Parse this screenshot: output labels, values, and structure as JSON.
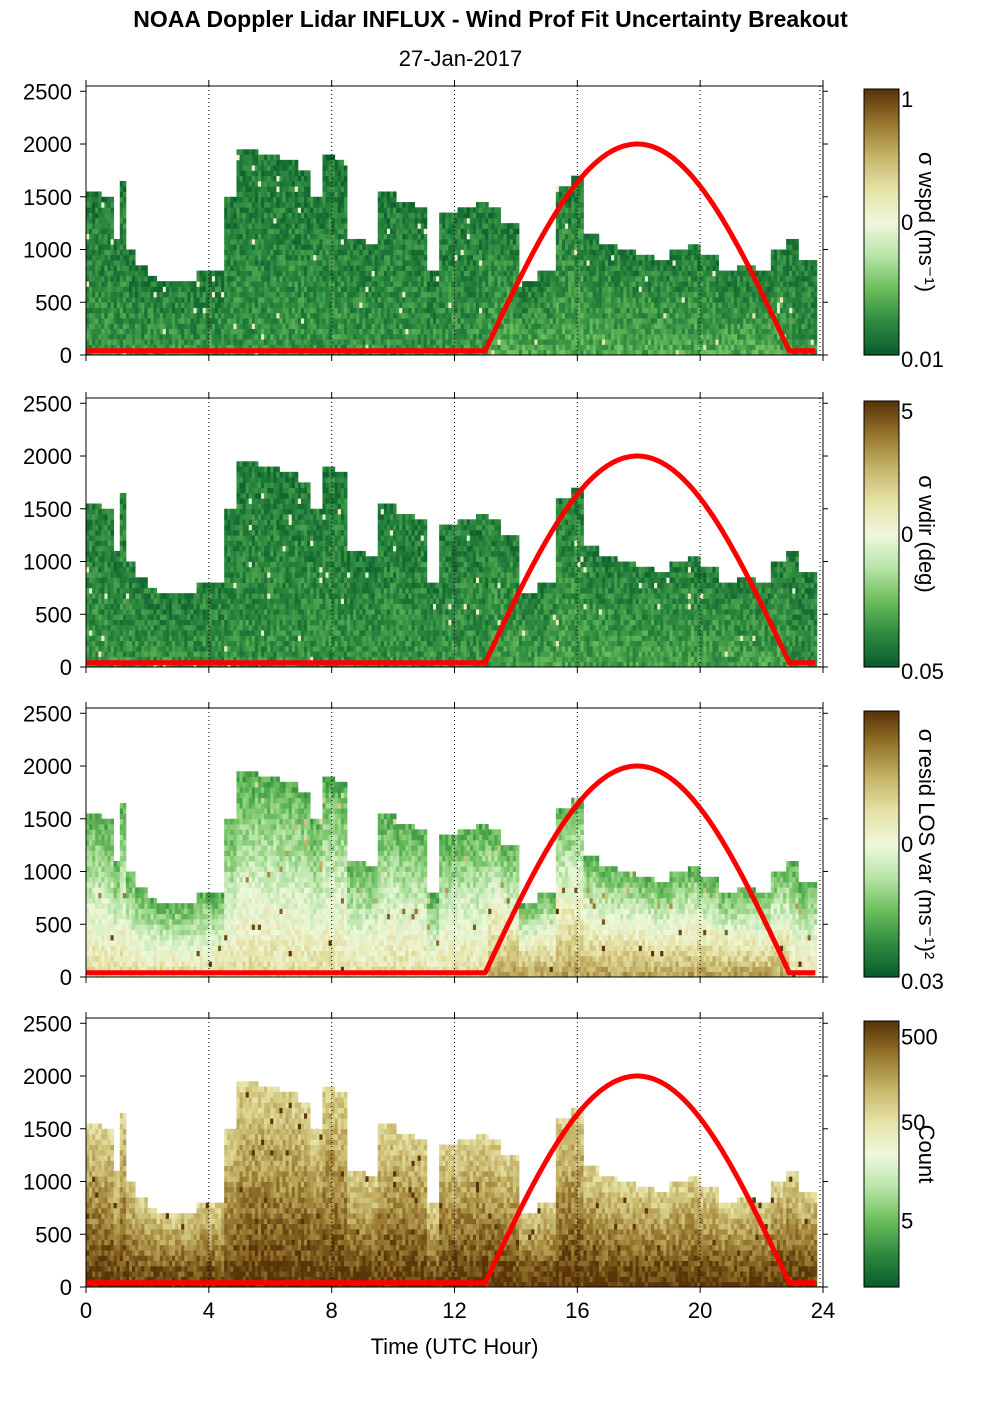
{
  "title": "NOAA Doppler Lidar INFLUX - Wind Prof Fit Uncertainty Breakout",
  "date": "27-Jan-2017",
  "x_axis": {
    "label": "Time (UTC Hour)",
    "ticks": [
      0,
      4,
      8,
      12,
      16,
      20,
      24
    ],
    "range": [
      0,
      24
    ]
  },
  "y_axis": {
    "ticks": [
      0,
      500,
      1000,
      1500,
      2000,
      2500
    ],
    "range": [
      0,
      2550
    ]
  },
  "sun_curve_color": "#ff0000",
  "colormap": [
    "#0a5c2c",
    "#2e8b40",
    "#6cbe5c",
    "#b8e4a8",
    "#eef8dc",
    "#e6e2a6",
    "#c6b56a",
    "#98772e",
    "#5a3508"
  ],
  "panels": [
    {
      "cbar_label": "σ wspd (ms⁻¹)",
      "cbar_ticks": [
        "1",
        "0",
        "0.01"
      ],
      "cbar_tick_pos": [
        1,
        0.5,
        0
      ]
    },
    {
      "cbar_label": "σ wdir (deg)",
      "cbar_ticks": [
        "5",
        "0",
        "0.05"
      ],
      "cbar_tick_pos": [
        1,
        0.5,
        0
      ]
    },
    {
      "cbar_label": "σ resid LOS var (ms⁻¹)²",
      "cbar_ticks": [
        "0",
        "0.03"
      ],
      "cbar_tick_pos": [
        0.5,
        0
      ]
    },
    {
      "cbar_label": "Count",
      "cbar_ticks": [
        "500",
        "50",
        "5"
      ],
      "cbar_tick_pos": [
        0.98,
        0.62,
        0.25
      ]
    }
  ],
  "chart_data": {
    "type": "heatmap",
    "x_unit": "UTC hour",
    "y_unit": "m",
    "profile_top_height": [
      [
        0.0,
        1530
      ],
      [
        0.5,
        1480
      ],
      [
        0.8,
        1100
      ],
      [
        1.0,
        1650
      ],
      [
        1.3,
        1000
      ],
      [
        1.6,
        850
      ],
      [
        2.0,
        750
      ],
      [
        2.3,
        700
      ],
      [
        2.8,
        700
      ],
      [
        3.2,
        700
      ],
      [
        3.6,
        800
      ],
      [
        4.0,
        780
      ],
      [
        4.5,
        1500
      ],
      [
        4.8,
        1920
      ],
      [
        5.5,
        1900
      ],
      [
        6.2,
        1850
      ],
      [
        6.8,
        1750
      ],
      [
        7.2,
        1500
      ],
      [
        7.6,
        1900
      ],
      [
        8.0,
        1850
      ],
      [
        8.4,
        1100
      ],
      [
        9.0,
        1050
      ],
      [
        9.4,
        1550
      ],
      [
        10.0,
        1450
      ],
      [
        10.6,
        1400
      ],
      [
        11.0,
        760
      ],
      [
        11.4,
        1350
      ],
      [
        12.0,
        1400
      ],
      [
        12.6,
        1450
      ],
      [
        13.0,
        1400
      ],
      [
        13.4,
        1250
      ],
      [
        14.0,
        700
      ],
      [
        14.6,
        800
      ],
      [
        15.2,
        1600
      ],
      [
        15.7,
        1700
      ],
      [
        16.1,
        1150
      ],
      [
        16.6,
        1050
      ],
      [
        17.2,
        1000
      ],
      [
        17.8,
        950
      ],
      [
        18.4,
        900
      ],
      [
        19.0,
        1000
      ],
      [
        19.6,
        1050
      ],
      [
        20.0,
        950
      ],
      [
        20.6,
        800
      ],
      [
        21.2,
        850
      ],
      [
        21.8,
        800
      ],
      [
        22.3,
        1000
      ],
      [
        22.8,
        1100
      ],
      [
        23.2,
        900
      ],
      [
        23.8,
        860
      ]
    ],
    "solar_elevation_curve": {
      "sunrise_hour": 13.0,
      "sunset_hour": 22.9,
      "peak_hour": 17.95,
      "peak_height": 2000,
      "night_level": 40
    },
    "series": [
      {
        "name": "σ wspd (ms⁻¹)",
        "near_surface_level": 0.15,
        "aloft_level": 0.08,
        "afternoon_boost": 0.05
      },
      {
        "name": "σ wdir (deg)",
        "near_surface_level": 0.14,
        "aloft_level": 0.09,
        "afternoon_boost": 0.04
      },
      {
        "name": "σ resid LOS var (ms⁻¹)²",
        "near_surface_level": 0.64,
        "aloft_level": 0.2,
        "afternoon_boost": 0.14
      },
      {
        "name": "Count",
        "near_surface_level": 1.0,
        "aloft_level": 0.66,
        "afternoon_boost": 0.0
      }
    ]
  }
}
